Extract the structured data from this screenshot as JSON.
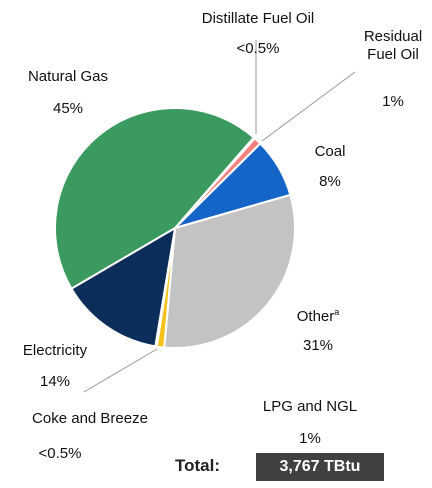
{
  "chart_data": {
    "type": "pie",
    "categories": [
      "Distillate Fuel Oil",
      "Residual Fuel Oil",
      "Coal",
      "Other",
      "LPG and NGL",
      "Coke and Breeze",
      "Electricity",
      "Natural Gas"
    ],
    "category_footnotes": {
      "3": "a"
    },
    "values": [
      0.2,
      1,
      8,
      31,
      1,
      0.2,
      14,
      45
    ],
    "value_labels": [
      "<0.5%",
      "1%",
      "8%",
      "31%",
      "1%",
      "<0.5%",
      "14%",
      "45%"
    ],
    "colors": [
      "#7a3b1a",
      "#f47f7f",
      "#1565c8",
      "#c3c3c3",
      "#f5c21b",
      "#3a3a3a",
      "#0b2d5a",
      "#3a9a5f"
    ],
    "total_label": "Total:",
    "total_value": "3,767 TBtu"
  }
}
